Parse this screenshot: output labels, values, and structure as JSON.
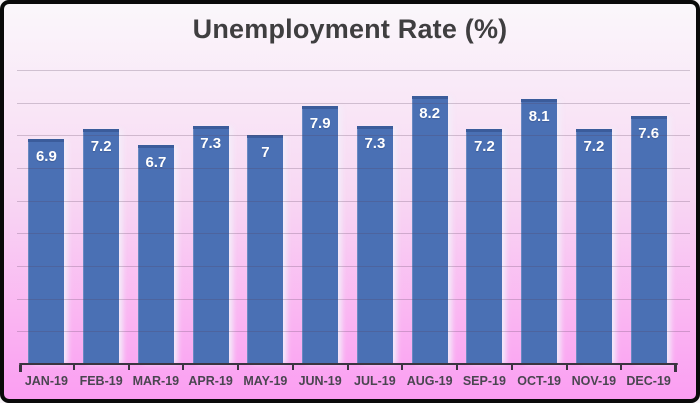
{
  "chart": {
    "title": "Unemployment Rate (%)",
    "colors": {
      "frame_border": "#0a0a0a",
      "background_top": "#faf7fb",
      "background_mid": "#f8d8f3",
      "background_bottom": "#fb9ef2",
      "bar_fill": "#4a70b4",
      "bar_top_edge": "#3b5c9b",
      "value_label": "#ffffff",
      "axis_line": "#3a3440",
      "x_tick_label": "#4a4550",
      "title_text": "#3f3e40",
      "gridline": "rgba(88,62,92,0.25)"
    }
  },
  "chart_data": {
    "type": "bar",
    "title": "Unemployment Rate (%)",
    "xlabel": "",
    "ylabel": "",
    "categories": [
      "JAN-19",
      "FEB-19",
      "MAR-19",
      "APR-19",
      "MAY-19",
      "JUN-19",
      "JUL-19",
      "AUG-19",
      "SEP-19",
      "OCT-19",
      "NOV-19",
      "DEC-19"
    ],
    "values": [
      6.9,
      7.2,
      6.7,
      7.3,
      7,
      7.9,
      7.3,
      8.2,
      7.2,
      8.1,
      7.2,
      7.6
    ],
    "value_labels": [
      "6.9",
      "7.2",
      "6.7",
      "7.3",
      "7",
      "7.9",
      "7.3",
      "8.2",
      "7.2",
      "8.1",
      "7.2",
      "7.6"
    ],
    "ylim": [
      0,
      9
    ],
    "grid_step": 1,
    "grid": "horizontal",
    "legend_position": "none",
    "y_axis_labels_shown": false,
    "value_labels_position": "inside-top"
  }
}
